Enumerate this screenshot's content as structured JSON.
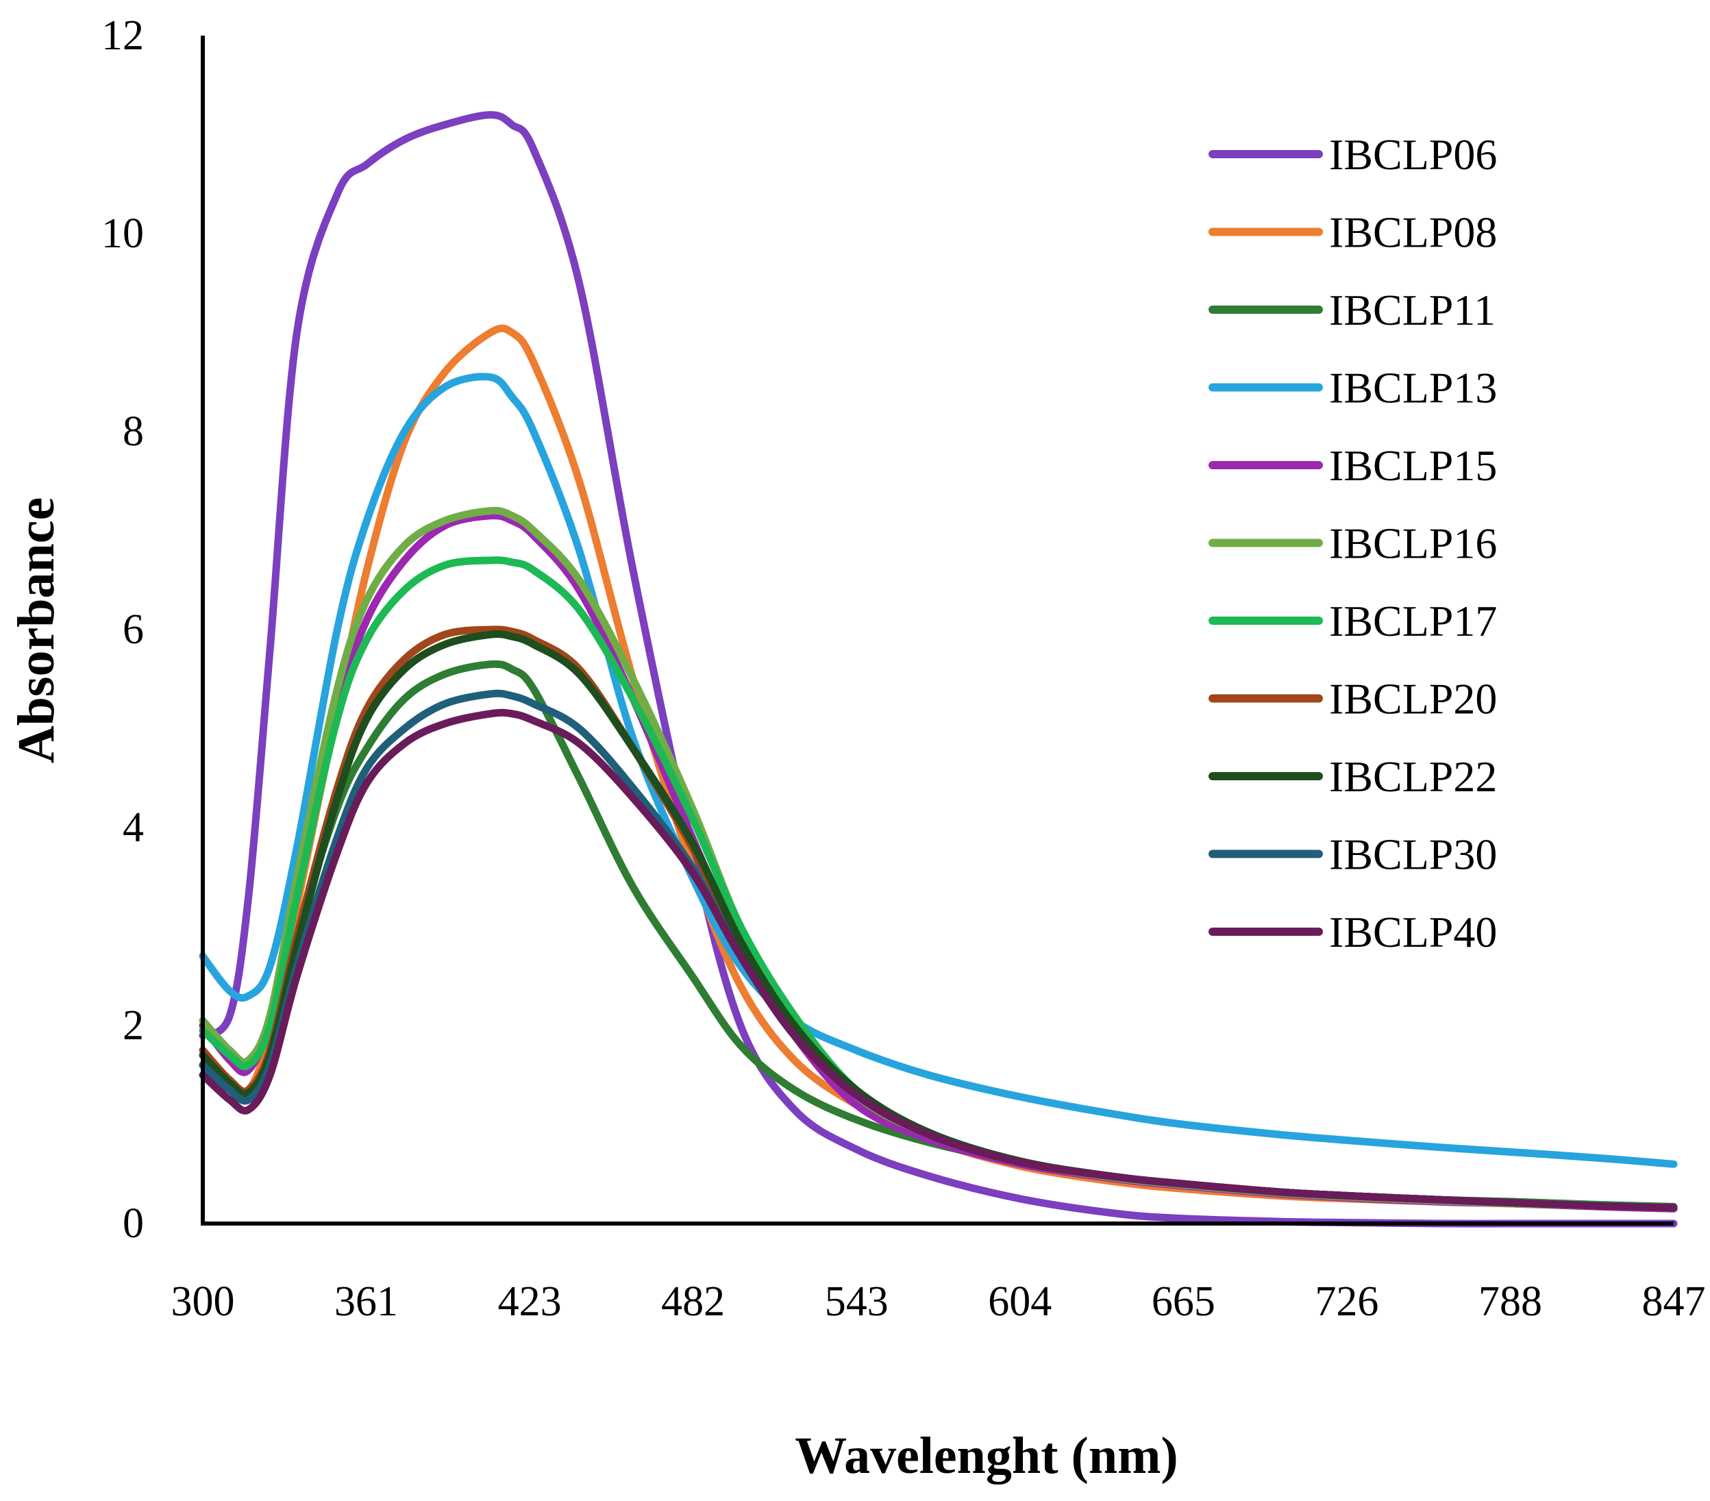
{
  "chart_data": {
    "type": "line",
    "title": "",
    "xlabel": "Wavelenght (nm)",
    "ylabel": "Absorbance",
    "xlim": [
      300,
      847
    ],
    "ylim": [
      0,
      12
    ],
    "x_ticks": [
      "300",
      "361",
      "423",
      "482",
      "543",
      "604",
      "665",
      "726",
      "788",
      "847"
    ],
    "y_ticks": [
      "0",
      "2",
      "4",
      "6",
      "8",
      "10",
      "12"
    ],
    "grid": false,
    "legend_position": "right",
    "x": [
      300,
      310,
      317,
      325,
      335,
      350,
      361,
      375,
      390,
      407,
      415,
      423,
      440,
      460,
      482,
      500,
      520,
      543,
      570,
      604,
      640,
      665,
      700,
      726,
      760,
      788,
      820,
      847
    ],
    "series": [
      {
        "name": "IBCLP06",
        "color": "#7b3fbf",
        "values": [
          1.9,
          2.1,
          3.3,
          5.8,
          9.0,
          10.4,
          10.7,
          10.95,
          11.1,
          11.2,
          11.1,
          10.85,
          9.5,
          6.6,
          3.8,
          2.0,
          1.15,
          0.75,
          0.48,
          0.25,
          0.1,
          0.05,
          0.02,
          0.01,
          0.0,
          0.0,
          0.0,
          0.0
        ]
      },
      {
        "name": "IBCLP08",
        "color": "#ed7d31",
        "values": [
          1.7,
          1.45,
          1.35,
          1.9,
          3.2,
          5.2,
          6.6,
          7.9,
          8.6,
          9.0,
          9.0,
          8.7,
          7.5,
          5.5,
          3.6,
          2.4,
          1.65,
          1.2,
          0.85,
          0.58,
          0.42,
          0.35,
          0.28,
          0.25,
          0.22,
          0.2,
          0.17,
          0.15
        ]
      },
      {
        "name": "IBCLP11",
        "color": "#2e7d32",
        "values": [
          1.6,
          1.4,
          1.3,
          1.75,
          2.9,
          4.2,
          4.8,
          5.3,
          5.55,
          5.65,
          5.6,
          5.4,
          4.5,
          3.4,
          2.5,
          1.8,
          1.35,
          1.05,
          0.82,
          0.62,
          0.47,
          0.4,
          0.32,
          0.28,
          0.24,
          0.22,
          0.19,
          0.17
        ]
      },
      {
        "name": "IBCLP13",
        "color": "#27a4dd",
        "values": [
          2.7,
          2.35,
          2.3,
          2.6,
          3.8,
          6.0,
          7.1,
          8.0,
          8.45,
          8.55,
          8.35,
          8.0,
          6.8,
          4.9,
          3.5,
          2.6,
          2.05,
          1.75,
          1.5,
          1.28,
          1.1,
          1.0,
          0.9,
          0.84,
          0.77,
          0.72,
          0.66,
          0.6
        ]
      },
      {
        "name": "IBCLP15",
        "color": "#9c27b0",
        "values": [
          2.0,
          1.65,
          1.55,
          2.05,
          3.4,
          5.2,
          6.1,
          6.7,
          7.05,
          7.15,
          7.1,
          6.95,
          6.4,
          5.3,
          3.9,
          2.8,
          1.9,
          1.2,
          0.85,
          0.6,
          0.45,
          0.38,
          0.3,
          0.26,
          0.22,
          0.2,
          0.17,
          0.15
        ]
      },
      {
        "name": "IBCLP16",
        "color": "#70ad47",
        "values": [
          2.05,
          1.75,
          1.65,
          2.1,
          3.5,
          5.4,
          6.3,
          6.85,
          7.1,
          7.2,
          7.15,
          7.0,
          6.5,
          5.5,
          4.2,
          3.0,
          2.1,
          1.3,
          0.9,
          0.62,
          0.46,
          0.39,
          0.31,
          0.27,
          0.23,
          0.2,
          0.18,
          0.16
        ]
      },
      {
        "name": "IBCLP17",
        "color": "#1db954",
        "values": [
          1.95,
          1.7,
          1.6,
          2.0,
          3.3,
          5.1,
          5.9,
          6.4,
          6.65,
          6.7,
          6.68,
          6.6,
          6.2,
          5.3,
          4.1,
          3.0,
          2.1,
          1.35,
          0.92,
          0.63,
          0.47,
          0.4,
          0.32,
          0.28,
          0.24,
          0.21,
          0.19,
          0.16
        ]
      },
      {
        "name": "IBCLP20",
        "color": "#a0461a",
        "values": [
          1.75,
          1.45,
          1.35,
          1.75,
          2.9,
          4.4,
          5.2,
          5.7,
          5.95,
          6.0,
          5.98,
          5.9,
          5.6,
          4.8,
          3.8,
          2.8,
          1.95,
          1.3,
          0.9,
          0.62,
          0.47,
          0.4,
          0.32,
          0.28,
          0.24,
          0.21,
          0.18,
          0.16
        ]
      },
      {
        "name": "IBCLP22",
        "color": "#1e4d1e",
        "values": [
          1.7,
          1.42,
          1.32,
          1.7,
          2.8,
          4.3,
          5.1,
          5.6,
          5.85,
          5.95,
          5.93,
          5.85,
          5.55,
          4.8,
          3.85,
          2.85,
          2.0,
          1.35,
          0.92,
          0.63,
          0.47,
          0.4,
          0.32,
          0.28,
          0.24,
          0.21,
          0.18,
          0.16
        ]
      },
      {
        "name": "IBCLP30",
        "color": "#1f5f7a",
        "values": [
          1.6,
          1.35,
          1.25,
          1.6,
          2.6,
          3.9,
          4.6,
          5.0,
          5.25,
          5.35,
          5.33,
          5.25,
          5.0,
          4.4,
          3.6,
          2.7,
          1.9,
          1.3,
          0.9,
          0.62,
          0.47,
          0.4,
          0.32,
          0.28,
          0.24,
          0.21,
          0.18,
          0.16
        ]
      },
      {
        "name": "IBCLP40",
        "color": "#6a1b5a",
        "values": [
          1.5,
          1.25,
          1.15,
          1.5,
          2.5,
          3.75,
          4.45,
          4.85,
          5.05,
          5.15,
          5.15,
          5.08,
          4.85,
          4.3,
          3.55,
          2.7,
          1.9,
          1.3,
          0.9,
          0.62,
          0.47,
          0.4,
          0.32,
          0.28,
          0.24,
          0.21,
          0.18,
          0.16
        ]
      }
    ]
  }
}
